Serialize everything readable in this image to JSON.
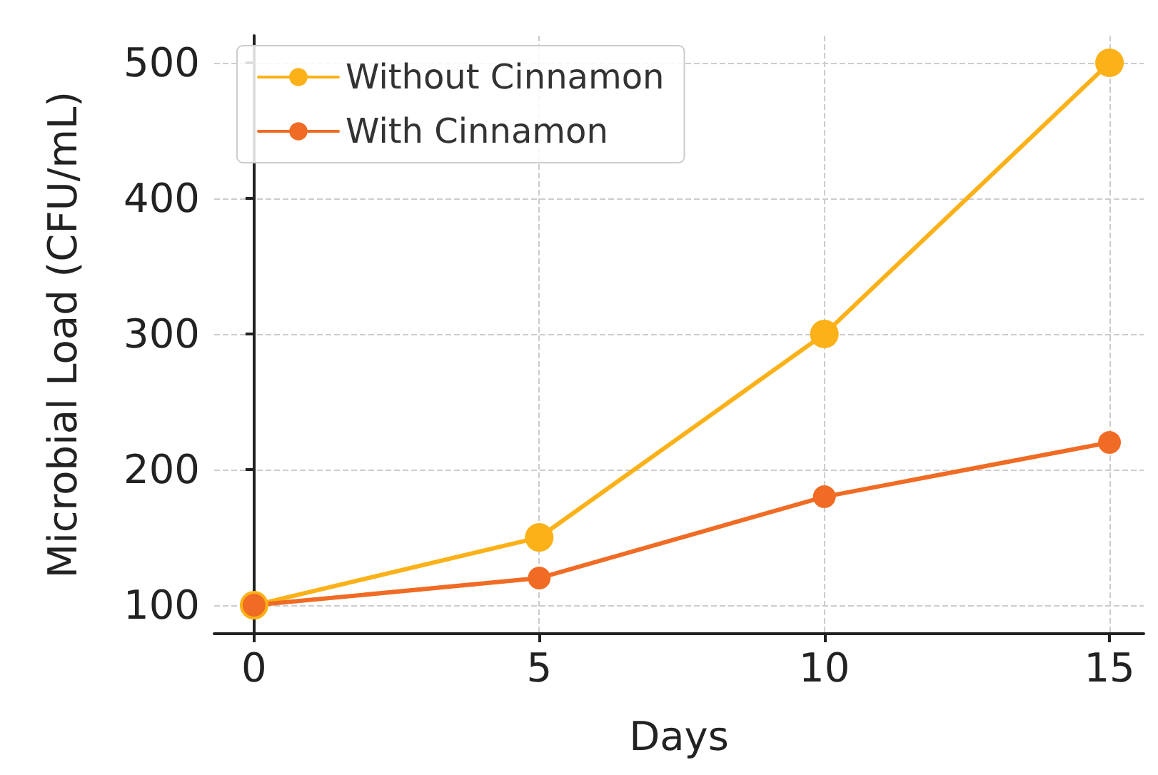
{
  "chart_data": {
    "type": "line",
    "xlabel": "Days",
    "ylabel": "Microbial Load (CFU/mL)",
    "x": [
      0,
      5,
      10,
      15
    ],
    "series": [
      {
        "name": "Without Cinnamon",
        "color": "#fbb117",
        "values": [
          100,
          150,
          300,
          500
        ]
      },
      {
        "name": "With Cinnamon",
        "color": "#f06b24",
        "values": [
          100,
          120,
          180,
          220
        ]
      }
    ],
    "xlim": [
      -0.7,
      15.6
    ],
    "ylim": [
      79,
      520
    ],
    "xticks": [
      0,
      5,
      10,
      15
    ],
    "yticks": [
      100,
      200,
      300,
      400,
      500
    ],
    "grid": true,
    "legend": "top left",
    "marker": "circle",
    "line_style": "solid"
  }
}
